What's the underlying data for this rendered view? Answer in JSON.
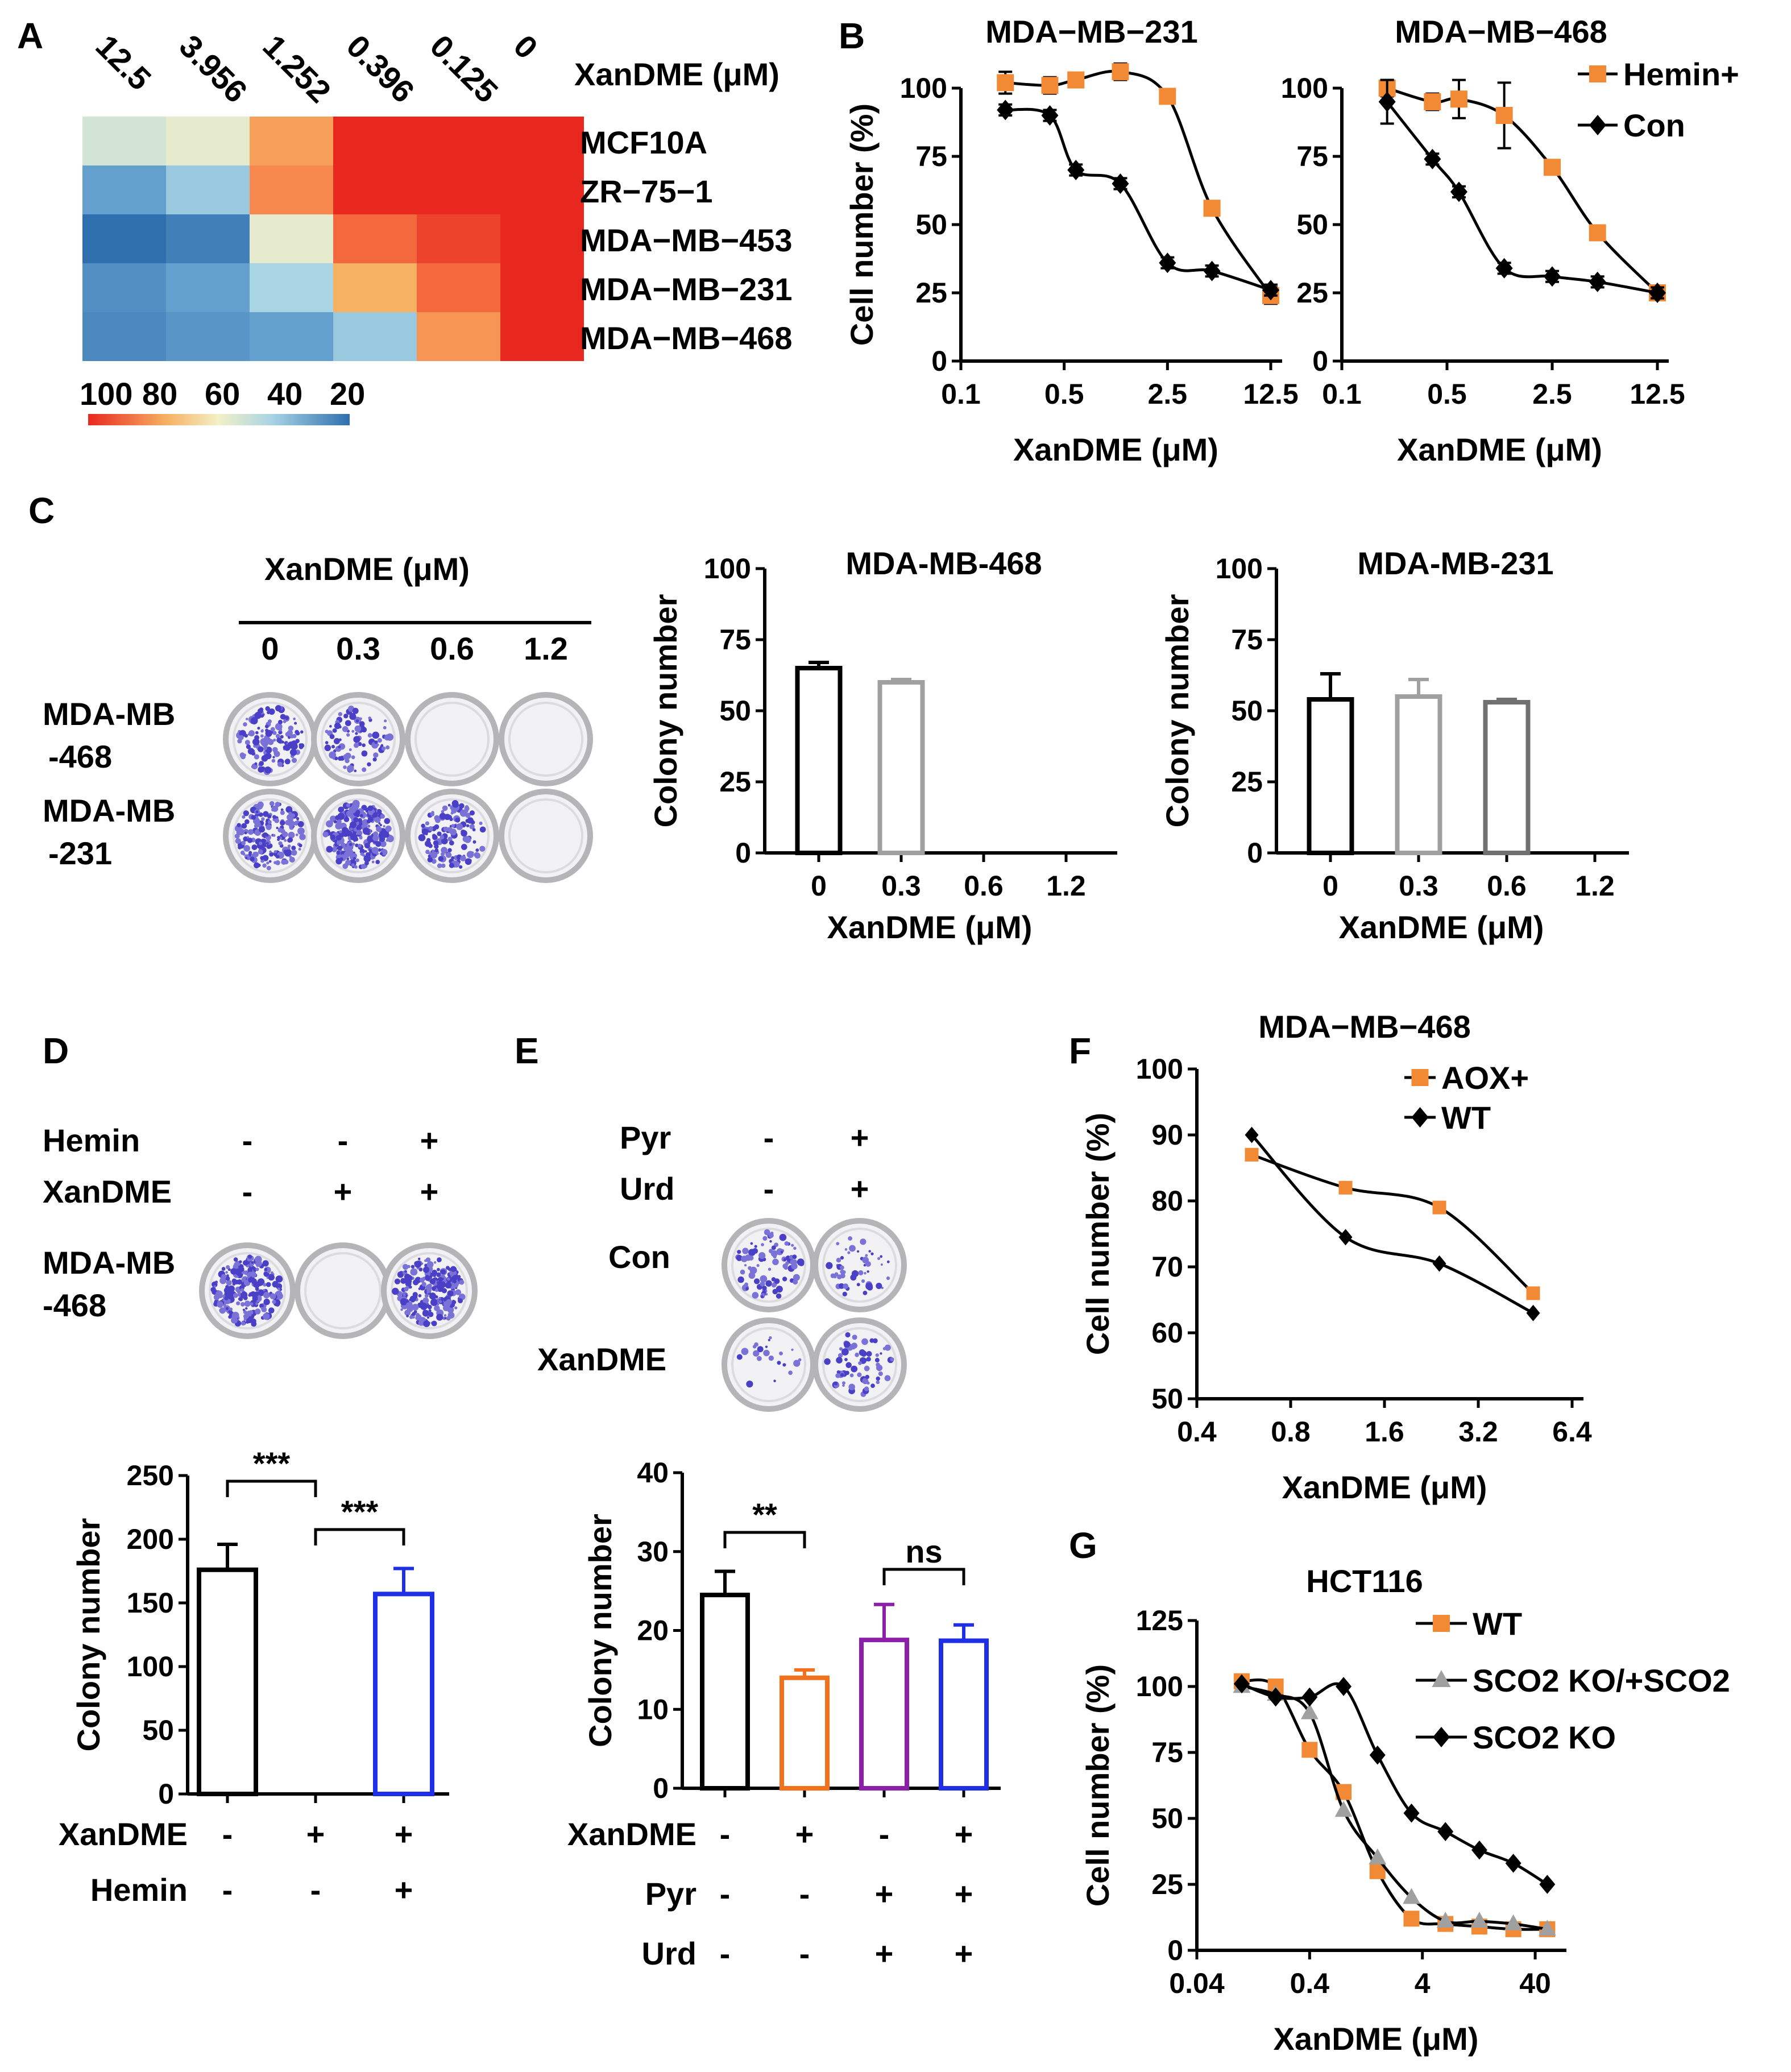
{
  "panels": {
    "A": "A",
    "B": "B",
    "C": "C",
    "D": "D",
    "E": "E",
    "F": "F",
    "G": "G"
  },
  "heatmap": {
    "title": "XanDME (μM)",
    "columns": [
      "12.5",
      "3.956",
      "1.252",
      "0.396",
      "0.125",
      "0"
    ],
    "rows": [
      "MCF10A",
      "ZR−75−1",
      "MDA−MB−453",
      "MDA−MB−231",
      "MDA−MB−468"
    ],
    "values": [
      [
        55,
        58,
        78,
        100,
        100,
        100
      ],
      [
        35,
        45,
        82,
        100,
        100,
        100
      ],
      [
        20,
        25,
        58,
        88,
        95,
        100
      ],
      [
        30,
        35,
        48,
        75,
        88,
        100
      ],
      [
        28,
        32,
        35,
        45,
        80,
        100
      ]
    ],
    "legend_labels": [
      "100",
      "80",
      "60",
      "40",
      "20"
    ],
    "colors": {
      "high": "#e8281f",
      "mid": "#f3f0c8",
      "low": "#2f6fae"
    }
  },
  "panel_c": {
    "dose_title": "XanDME (μM)",
    "doses": [
      "0",
      "0.3",
      "0.6",
      "1.2"
    ],
    "row1": "MDA-MB\n-468",
    "row1_a": "MDA-MB",
    "row1_b": "-468",
    "row2_a": "MDA-MB",
    "row2_b": "-231",
    "plate_densities": [
      [
        0.55,
        0.35,
        0,
        0
      ],
      [
        0.7,
        0.9,
        0.5,
        0
      ]
    ]
  },
  "panel_d": {
    "hemin_label": "Hemin",
    "xandme_label": "XanDME",
    "hemin": [
      "-",
      "-",
      "+"
    ],
    "xandme": [
      "-",
      "+",
      "+"
    ],
    "row_a": "MDA-MB",
    "row_b": "-468",
    "plate_densities": [
      0.9,
      0,
      0.85
    ]
  },
  "panel_e": {
    "pyr_label": "Pyr",
    "urd_label": "Urd",
    "pyr": [
      "-",
      "+"
    ],
    "urd": [
      "-",
      "+"
    ],
    "row1": "Con",
    "row2": "XanDME",
    "plate_densities": [
      [
        0.35,
        0.2
      ],
      [
        0.08,
        0.25
      ]
    ]
  },
  "chart_data": [
    {
      "id": "B1",
      "type": "line",
      "title": "MDA−MB−231",
      "xlabel": "XanDME (μM)",
      "ylabel": "Cell number (%)",
      "x_ticks": [
        "0.1",
        "0.5",
        "2.5",
        "12.5"
      ],
      "ylim": [
        0,
        100
      ],
      "y_ticks": [
        "0",
        "25",
        "50",
        "75",
        "100"
      ],
      "series": [
        {
          "name": "Hemin+",
          "color": "#f28a35",
          "marker": "square",
          "x": [
            0.2,
            0.4,
            0.6,
            1.2,
            2.5,
            5,
            12.5
          ],
          "y": [
            102,
            101,
            103,
            106,
            97,
            56,
            24
          ],
          "err": [
            4,
            3,
            2,
            3,
            2,
            2,
            3
          ]
        },
        {
          "name": "Con",
          "color": "#000000",
          "marker": "diamond",
          "x": [
            0.2,
            0.4,
            0.6,
            1.2,
            2.5,
            5,
            12.5
          ],
          "y": [
            92,
            90,
            70,
            65,
            36,
            33,
            26
          ],
          "err": [
            2,
            2,
            2,
            2,
            2,
            2,
            2
          ]
        }
      ]
    },
    {
      "id": "B2",
      "type": "line",
      "title": "MDA−MB−468",
      "xlabel": "XanDME (μM)",
      "ylabel": "",
      "x_ticks": [
        "0.1",
        "0.5",
        "2.5",
        "12.5"
      ],
      "ylim": [
        0,
        100
      ],
      "y_ticks": [
        "0",
        "25",
        "50",
        "75",
        "100"
      ],
      "legend": [
        "Hemin+",
        "Con"
      ],
      "series": [
        {
          "name": "Hemin+",
          "color": "#f28a35",
          "marker": "square",
          "x": [
            0.2,
            0.4,
            0.6,
            1.2,
            2.5,
            5,
            12.5
          ],
          "y": [
            100,
            95,
            96,
            90,
            71,
            47,
            25
          ],
          "err": [
            3,
            3,
            7,
            12,
            2,
            2,
            2
          ]
        },
        {
          "name": "Con",
          "color": "#000000",
          "marker": "diamond",
          "x": [
            0.2,
            0.4,
            0.6,
            1.2,
            2.5,
            5,
            12.5
          ],
          "y": [
            95,
            74,
            62,
            34,
            31,
            29,
            25
          ],
          "err": [
            8,
            2,
            2,
            2,
            2,
            2,
            2
          ]
        }
      ]
    },
    {
      "id": "C1",
      "type": "bar",
      "title": "MDA-MB-468",
      "xlabel": "XanDME (μM)",
      "ylabel": "Colony number",
      "categories": [
        "0",
        "0.3",
        "0.6",
        "1.2"
      ],
      "ylim": [
        0,
        100
      ],
      "y_ticks": [
        "0",
        "25",
        "50",
        "75",
        "100"
      ],
      "values": [
        65,
        60,
        0,
        0
      ],
      "err": [
        2,
        1,
        0,
        0
      ],
      "colors": [
        "#000000",
        "#a0a0a0",
        "#707070",
        "#505050"
      ]
    },
    {
      "id": "C2",
      "type": "bar",
      "title": "MDA-MB-231",
      "xlabel": "XanDME (μM)",
      "ylabel": "Colony number",
      "categories": [
        "0",
        "0.3",
        "0.6",
        "1.2"
      ],
      "ylim": [
        0,
        100
      ],
      "y_ticks": [
        "0",
        "25",
        "50",
        "75",
        "100"
      ],
      "values": [
        54,
        55,
        53,
        0
      ],
      "err": [
        9,
        6,
        1,
        0
      ],
      "colors": [
        "#000000",
        "#a0a0a0",
        "#707070",
        "#505050"
      ]
    },
    {
      "id": "D",
      "type": "bar",
      "ylabel": "Colony number",
      "ylim": [
        0,
        250
      ],
      "y_ticks": [
        "0",
        "50",
        "100",
        "150",
        "200",
        "250"
      ],
      "values": [
        176,
        0,
        157
      ],
      "err": [
        20,
        0,
        20
      ],
      "colors": [
        "#000000",
        "#000000",
        "#1f2fe8"
      ],
      "row_labels": [
        "XanDME",
        "Hemin"
      ],
      "conditions": [
        [
          "-",
          "+",
          "+"
        ],
        [
          "-",
          "-",
          "+"
        ]
      ],
      "significance": [
        "***",
        "***"
      ]
    },
    {
      "id": "E",
      "type": "bar",
      "ylabel": "Colony number",
      "ylim": [
        0,
        40
      ],
      "y_ticks": [
        "0",
        "10",
        "20",
        "30",
        "40"
      ],
      "values": [
        24.5,
        14,
        18.8,
        18.7
      ],
      "err": [
        3,
        1,
        4.5,
        2
      ],
      "colors": [
        "#000000",
        "#f2711c",
        "#8b1fa8",
        "#1f2fe8"
      ],
      "row_labels": [
        "XanDME",
        "Pyr",
        "Urd"
      ],
      "conditions": [
        [
          "-",
          "+",
          "-",
          "+"
        ],
        [
          "-",
          "-",
          "+",
          "+"
        ],
        [
          "-",
          "-",
          "+",
          "+"
        ]
      ],
      "significance": [
        "**",
        "ns"
      ]
    },
    {
      "id": "F",
      "type": "line",
      "title": "MDA−MB−468",
      "xlabel": "XanDME (μM)",
      "ylabel": "Cell number (%)",
      "x_ticks": [
        "0.4",
        "0.8",
        "1.6",
        "3.2",
        "6.4"
      ],
      "ylim": [
        50,
        100
      ],
      "y_ticks": [
        "50",
        "60",
        "70",
        "80",
        "90",
        "100"
      ],
      "series": [
        {
          "name": "AOX+",
          "color": "#f28a35",
          "marker": "square",
          "x": [
            0.6,
            1.2,
            2.4,
            4.8
          ],
          "y": [
            87,
            82,
            79,
            66
          ]
        },
        {
          "name": "WT",
          "color": "#000000",
          "marker": "diamond",
          "x": [
            0.6,
            1.2,
            2.4,
            4.8
          ],
          "y": [
            90,
            74.5,
            70.5,
            63
          ]
        }
      ]
    },
    {
      "id": "G",
      "type": "line",
      "title": "HCT116",
      "xlabel": "XanDME (μM)",
      "ylabel": "Cell number (%)",
      "x_ticks": [
        "0.04",
        "0.4",
        "4",
        "40"
      ],
      "ylim": [
        0,
        125
      ],
      "y_ticks": [
        "0",
        "25",
        "50",
        "75",
        "100",
        "125"
      ],
      "series": [
        {
          "name": "WT",
          "color": "#f28a35",
          "marker": "square",
          "x": [
            0.1,
            0.2,
            0.4,
            0.8,
            1.6,
            3.2,
            6.4,
            12.8,
            25.6,
            51.2
          ],
          "y": [
            102,
            100,
            76,
            60,
            30,
            12,
            10,
            9,
            8,
            8
          ]
        },
        {
          "name": "SCO2 KO/+SCO2",
          "color": "#a0a0a0",
          "marker": "triangle",
          "x": [
            0.1,
            0.2,
            0.4,
            0.8,
            1.6,
            3.2,
            6.4,
            12.8,
            25.6,
            51.2
          ],
          "y": [
            100,
            97,
            90,
            53,
            35,
            20,
            11,
            11,
            10,
            8
          ]
        },
        {
          "name": "SCO2 KO",
          "color": "#000000",
          "marker": "diamond",
          "x": [
            0.1,
            0.2,
            0.4,
            0.8,
            1.6,
            3.2,
            6.4,
            12.8,
            25.6,
            51.2
          ],
          "y": [
            101,
            96,
            96,
            100,
            74,
            52,
            45,
            38,
            33,
            25
          ]
        }
      ]
    }
  ]
}
